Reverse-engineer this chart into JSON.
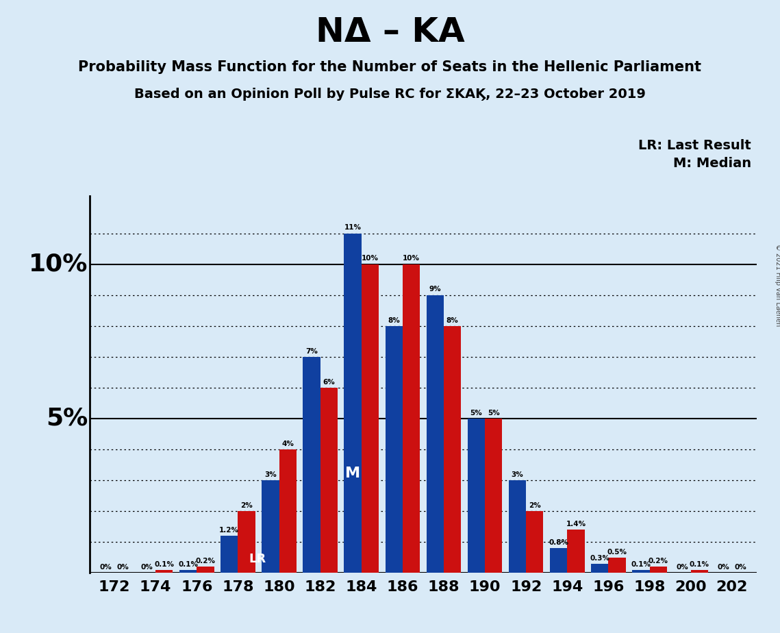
{
  "title": "NΔ – KA",
  "subtitle1": "Probability Mass Function for the Number of Seats in the Hellenic Parliament",
  "subtitle2": "Based on an Opinion Poll by Pulse RC for ΣKAϏ, 22–23 October 2019",
  "copyright": "© 2021 Filip van Laenen",
  "background_color": "#d9eaf7",
  "seats": [
    172,
    174,
    176,
    178,
    180,
    182,
    184,
    186,
    188,
    190,
    192,
    194,
    196,
    198,
    200,
    202
  ],
  "blue_values": [
    0.0,
    0.0,
    0.1,
    1.2,
    3.0,
    7.0,
    11.0,
    8.0,
    9.0,
    5.0,
    3.0,
    0.8,
    0.3,
    0.1,
    0.0,
    0.0
  ],
  "red_values": [
    0.0,
    0.1,
    0.2,
    2.0,
    4.0,
    6.0,
    10.0,
    10.0,
    8.0,
    5.0,
    2.0,
    1.4,
    0.5,
    0.2,
    0.1,
    0.0
  ],
  "blue_labels": [
    "0%",
    "0%",
    "0.1%",
    "1.2%",
    "3%",
    "7%",
    "11%",
    "8%",
    "9%",
    "5%",
    "3%",
    "0.8%",
    "0.3%",
    "0.1%",
    "0%",
    "0%"
  ],
  "red_labels": [
    "0%",
    "0.1%",
    "0.2%",
    "2%",
    "4%",
    "6%",
    "10%",
    "10%",
    "8%",
    "5%",
    "2%",
    "1.4%",
    "0.5%",
    "0.2%",
    "0.1%",
    "0%"
  ],
  "blue_color": "#1040a0",
  "red_color": "#cc1010",
  "lr_seat_idx": 3,
  "median_seat_idx": 6,
  "ylim": [
    0,
    12.2
  ],
  "ytick_positions": [
    0,
    1,
    2,
    3,
    4,
    5,
    6,
    7,
    8,
    9,
    10,
    11
  ],
  "solid_lines": [
    0,
    5,
    10
  ],
  "dotted_lines": [
    1,
    2,
    3,
    4,
    6,
    7,
    8,
    9,
    11
  ],
  "ylabel_5": "5%",
  "ylabel_10": "10%",
  "legend_lr": "LR: Last Result",
  "legend_m": "M: Median",
  "xlabel_concat": "172174176178180182184186188190192194196198200202"
}
